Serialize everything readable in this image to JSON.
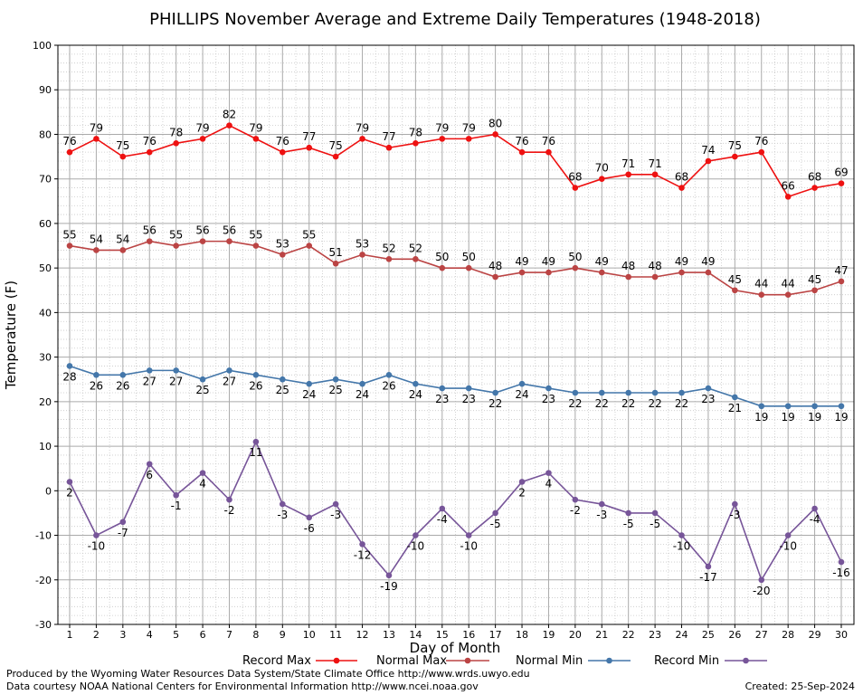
{
  "chart_data": {
    "type": "line",
    "title": "PHILLIPS November Average and Extreme Daily Temperatures (1948-2018)",
    "xlabel": "Day of Month",
    "ylabel": "Temperature (F)",
    "ylim": [
      -30,
      100
    ],
    "yticks": [
      -30,
      -20,
      -10,
      0,
      10,
      20,
      30,
      40,
      50,
      60,
      70,
      80,
      90,
      100
    ],
    "x": [
      1,
      2,
      3,
      4,
      5,
      6,
      7,
      8,
      9,
      10,
      11,
      12,
      13,
      14,
      15,
      16,
      17,
      18,
      19,
      20,
      21,
      22,
      23,
      24,
      25,
      26,
      27,
      28,
      29,
      30
    ],
    "grid": true,
    "legend_position": "bottom",
    "series": [
      {
        "name": "Record Max",
        "color": "#ee1111",
        "label_position": "above",
        "values": [
          76,
          79,
          75,
          76,
          78,
          79,
          82,
          79,
          76,
          77,
          75,
          79,
          77,
          78,
          79,
          79,
          80,
          76,
          76,
          68,
          70,
          71,
          71,
          68,
          74,
          75,
          76,
          66,
          68,
          69
        ]
      },
      {
        "name": "Normal Max",
        "color": "#bb4444",
        "label_position": "above",
        "values": [
          55,
          54,
          54,
          56,
          55,
          56,
          56,
          55,
          53,
          55,
          51,
          53,
          52,
          52,
          50,
          50,
          48,
          49,
          49,
          50,
          49,
          48,
          48,
          49,
          49,
          45,
          44,
          44,
          45,
          47
        ]
      },
      {
        "name": "Normal Min",
        "color": "#4477aa",
        "label_position": "below",
        "values": [
          28,
          26,
          26,
          27,
          27,
          25,
          27,
          26,
          25,
          24,
          25,
          24,
          26,
          24,
          23,
          23,
          22,
          24,
          23,
          22,
          22,
          22,
          22,
          22,
          23,
          21,
          19,
          19,
          19,
          19
        ]
      },
      {
        "name": "Record Min",
        "color": "#775599",
        "label_position": "below",
        "values": [
          2,
          -10,
          -7,
          6,
          -1,
          4,
          -2,
          11,
          -3,
          -6,
          -3,
          -12,
          -19,
          -10,
          -4,
          -10,
          -5,
          2,
          4,
          -2,
          -3,
          -5,
          -5,
          -10,
          -17,
          -3,
          -20,
          -10,
          -4,
          -16
        ]
      }
    ]
  },
  "footer": {
    "line1": "Produced by the Wyoming Water Resources Data System/State Climate Office http://www.wrds.uwyo.edu",
    "line2": "Data courtesy NOAA National Centers for Environmental Information http://www.ncei.noaa.gov",
    "created": "Created:  25-Sep-2024"
  }
}
